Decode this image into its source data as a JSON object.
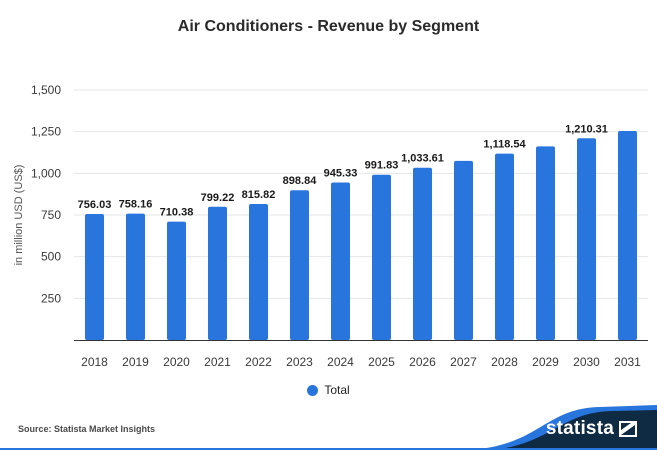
{
  "chart_data": {
    "type": "bar",
    "title": "Air Conditioners - Revenue by Segment",
    "xlabel": "",
    "ylabel": "in million USD (US$)",
    "categories": [
      "2018",
      "2019",
      "2020",
      "2021",
      "2022",
      "2023",
      "2024",
      "2025",
      "2026",
      "2027",
      "2028",
      "2029",
      "2030",
      "2031"
    ],
    "series": [
      {
        "name": "Total",
        "color": "#2876dd",
        "values": [
          756.03,
          758.16,
          710.38,
          799.22,
          815.82,
          898.84,
          945.33,
          991.83,
          1033.61,
          1075,
          1118.54,
          1162,
          1210.31,
          1254
        ],
        "labels": [
          "756.03",
          "758.16",
          "710.38",
          "799.22",
          "815.82",
          "898.84",
          "945.33",
          "991.83",
          "1,033.61",
          "",
          "1,118.54",
          "",
          "1,210.31",
          ""
        ]
      }
    ],
    "ylim": [
      0,
      1500
    ],
    "yticks": [
      250,
      500,
      750,
      1000,
      1250,
      1500
    ],
    "ytick_labels": [
      "250",
      "500",
      "750",
      "1,000",
      "1,250",
      "1,500"
    ],
    "grid": true,
    "legend": {
      "position": "bottom-center",
      "entries": [
        "Total"
      ]
    }
  },
  "footer": {
    "source": "Source: Statista Market Insights",
    "brand": "statista"
  },
  "colors": {
    "bar": "#2876dd",
    "grid": "#e6e6e6",
    "axis": "#333333",
    "footer_dark": "#0f2a43",
    "footer_accent": "#2876dd"
  }
}
